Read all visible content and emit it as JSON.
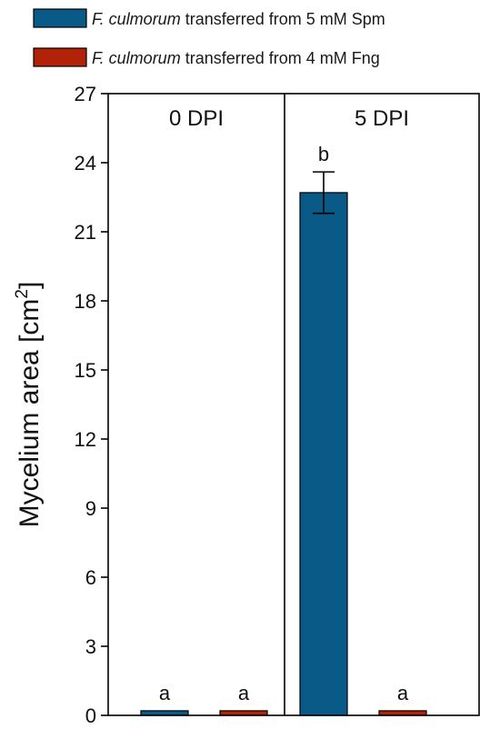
{
  "legend": {
    "items": [
      {
        "species": "F. culmorum",
        "rest": " transferred from 5 mM Spm",
        "color": "#0a5a87"
      },
      {
        "species": "F. culmorum",
        "rest": " transferred from 4 mM Fng",
        "color": "#b22208"
      }
    ]
  },
  "chart_data": {
    "type": "bar",
    "ylabel": "Mycelium area [cm",
    "ylabel_sup": "2",
    "ylabel_close": "]",
    "ylim": [
      0,
      27
    ],
    "yticks": [
      0,
      3,
      6,
      9,
      12,
      15,
      18,
      21,
      24,
      27
    ],
    "grid": false,
    "panels": [
      "0 DPI",
      "5 DPI"
    ],
    "series": [
      {
        "name": "F. culmorum transferred from 5 mM Spm",
        "color": "#0a5a87",
        "values": [
          0.2,
          22.7
        ],
        "errors": [
          0,
          0.9
        ],
        "labels": [
          "a",
          "b"
        ]
      },
      {
        "name": "F. culmorum transferred from 4 mM Fng",
        "color": "#b22208",
        "values": [
          0.2,
          0.2
        ],
        "errors": [
          0,
          0
        ],
        "labels": [
          "a",
          "a"
        ]
      }
    ]
  }
}
